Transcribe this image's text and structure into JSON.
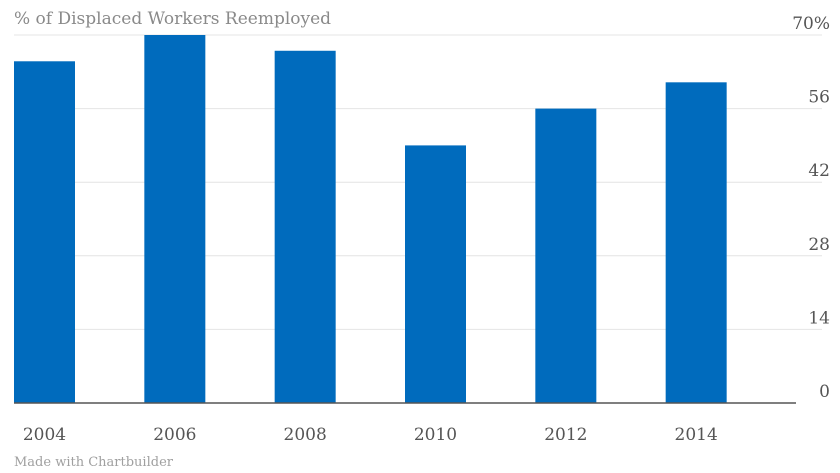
{
  "chart_data": {
    "type": "bar",
    "title": "% of Displaced Workers Reemployed",
    "categories": [
      "2004",
      "2006",
      "2008",
      "2010",
      "2012",
      "2014"
    ],
    "values": [
      65,
      70,
      67,
      49,
      56,
      61
    ],
    "ylim": [
      0,
      70
    ],
    "yticks": [
      0,
      14,
      28,
      42,
      56,
      70
    ],
    "ytick_labels": [
      "0",
      "14",
      "28",
      "42",
      "56",
      "70%"
    ],
    "y_axis_side": "right",
    "grid": true,
    "bar_color": "#006bbd"
  },
  "credit": "Made with Chartbuilder"
}
